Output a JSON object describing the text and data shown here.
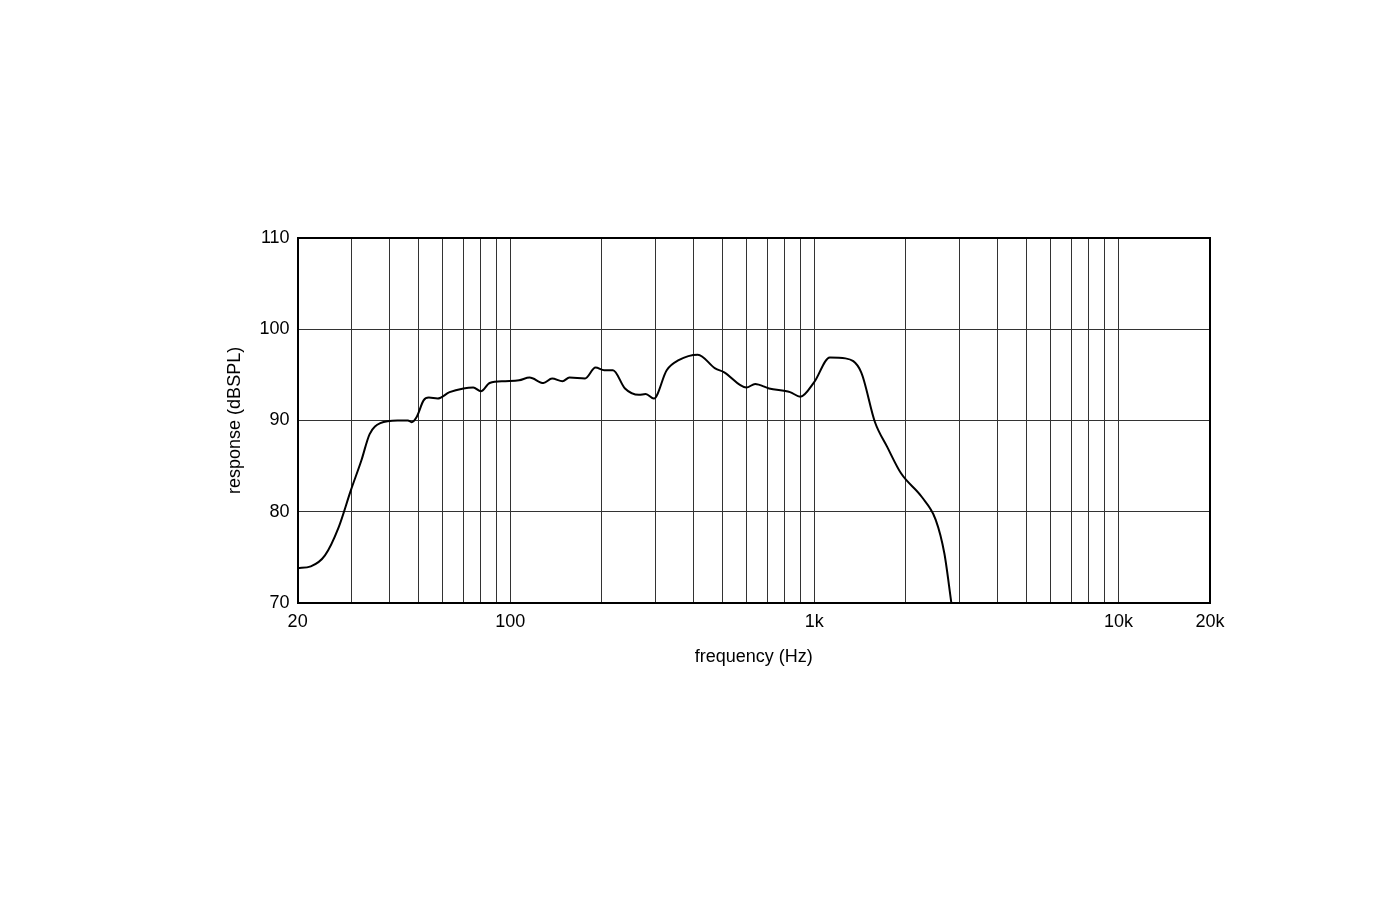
{
  "chart_data": {
    "type": "line",
    "xlabel": "frequency (Hz)",
    "ylabel": "response (dBSPL)",
    "log": "x",
    "grid": true,
    "marker": "none",
    "line_style": "solid",
    "xlim": [
      20,
      20000
    ],
    "ylim": [
      70,
      110
    ],
    "xticks": [
      20,
      {
        "value": 30,
        "label": null
      },
      {
        "value": 40,
        "label": null
      },
      {
        "value": 50,
        "label": null
      },
      {
        "value": 60,
        "label": null
      },
      {
        "value": 70,
        "label": null
      },
      {
        "value": 80,
        "label": null
      },
      {
        "value": 90,
        "label": null
      },
      100,
      {
        "value": 200,
        "label": null
      },
      {
        "value": 300,
        "label": null
      },
      {
        "value": 400,
        "label": null
      },
      {
        "value": 500,
        "label": null
      },
      {
        "value": 600,
        "label": null
      },
      {
        "value": 700,
        "label": null
      },
      {
        "value": 800,
        "label": null
      },
      {
        "value": 900,
        "label": null
      },
      {
        "value": 1000,
        "label": "1k"
      },
      {
        "value": 2000,
        "label": null
      },
      {
        "value": 3000,
        "label": null
      },
      {
        "value": 4000,
        "label": null
      },
      {
        "value": 5000,
        "label": null
      },
      {
        "value": 6000,
        "label": null
      },
      {
        "value": 7000,
        "label": null
      },
      {
        "value": 8000,
        "label": null
      },
      {
        "value": 9000,
        "label": null
      },
      {
        "value": 10000,
        "label": "10k"
      },
      {
        "value": 20000,
        "label": "20k"
      }
    ],
    "yticks": [
      70,
      80,
      90,
      100,
      110
    ],
    "series": [
      {
        "color": "#000000",
        "x": [
          20,
          22.1,
          24.6,
          27.3,
          29.9,
          32.4,
          34.5,
          37.4,
          42.6,
          46.1,
          47.4,
          49.3,
          51.9,
          54,
          57.7,
          63.2,
          70.2,
          75.6,
          80.1,
          85.6,
          96.3,
          107,
          115.8,
          128.6,
          137.3,
          148.6,
          156.6,
          176.2,
          190.8,
          203.7,
          217.7,
          238.5,
          265,
          279,
          296.8,
          327,
          358,
          414,
          472,
          504,
          598,
          639,
          710,
          832,
          900,
          999,
          1124,
          1266,
          1425,
          1583,
          1736,
          1928,
          2257,
          2507,
          2677,
          2822
        ],
        "values": [
          73.8,
          74,
          75.2,
          78.3,
          82.3,
          85.6,
          88.5,
          89.7,
          90,
          90,
          89.8,
          90.4,
          92.2,
          92.5,
          92.4,
          93.1,
          93.5,
          93.6,
          93.2,
          94.1,
          94.3,
          94.4,
          94.7,
          94.1,
          94.6,
          94.3,
          94.7,
          94.6,
          95.8,
          95.5,
          95.5,
          93.5,
          92.8,
          92.9,
          92.4,
          95.5,
          96.6,
          97.2,
          95.7,
          95.3,
          93.6,
          94,
          93.5,
          93.1,
          92.6,
          94.2,
          96.9,
          96.8,
          95.3,
          89.8,
          87.1,
          84.2,
          81.6,
          79.1,
          75.4,
          70
        ]
      }
    ]
  }
}
